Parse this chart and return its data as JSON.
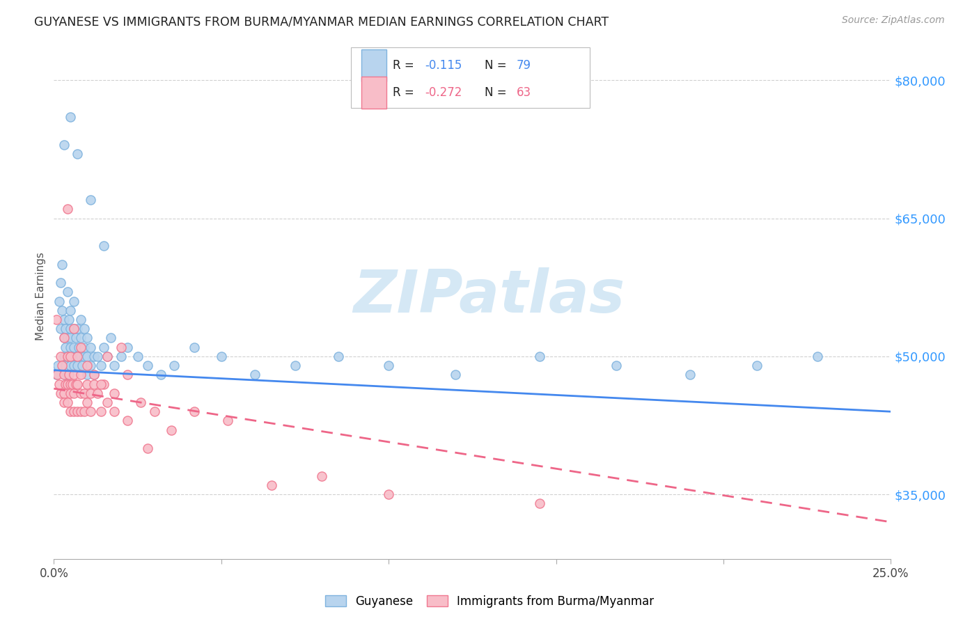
{
  "title": "GUYANESE VS IMMIGRANTS FROM BURMA/MYANMAR MEDIAN EARNINGS CORRELATION CHART",
  "source": "Source: ZipAtlas.com",
  "ylabel": "Median Earnings",
  "xlim": [
    0.0,
    0.25
  ],
  "ylim": [
    28000,
    85000
  ],
  "yticks": [
    35000,
    50000,
    65000,
    80000
  ],
  "ytick_labels": [
    "$35,000",
    "$50,000",
    "$65,000",
    "$80,000"
  ],
  "xticks": [
    0.0,
    0.05,
    0.1,
    0.15,
    0.2,
    0.25
  ],
  "xtick_labels": [
    "0.0%",
    "",
    "",
    "",
    "",
    "25.0%"
  ],
  "background_color": "#ffffff",
  "grid_color": "#d0d0d0",
  "blue_scatter_face": "#b8d4ee",
  "blue_scatter_edge": "#7fb3de",
  "pink_scatter_face": "#f8bdc8",
  "pink_scatter_edge": "#f07890",
  "blue_line_color": "#4488ee",
  "pink_line_color": "#ee6688",
  "title_color": "#222222",
  "ylabel_color": "#555555",
  "ytick_color": "#3399ff",
  "xtick_color": "#444444",
  "label1": "Guyanese",
  "label2": "Immigrants from Burma/Myanmar",
  "watermark_text": "ZIPatlas",
  "watermark_color": "#d5e8f5",
  "blue_x": [
    0.0008,
    0.0012,
    0.0015,
    0.002,
    0.002,
    0.0025,
    0.0025,
    0.003,
    0.003,
    0.003,
    0.003,
    0.0035,
    0.0035,
    0.0035,
    0.004,
    0.004,
    0.004,
    0.004,
    0.0045,
    0.0045,
    0.005,
    0.005,
    0.005,
    0.005,
    0.005,
    0.0055,
    0.006,
    0.006,
    0.006,
    0.006,
    0.0065,
    0.007,
    0.007,
    0.007,
    0.0075,
    0.008,
    0.008,
    0.008,
    0.0085,
    0.009,
    0.009,
    0.009,
    0.01,
    0.01,
    0.01,
    0.011,
    0.011,
    0.012,
    0.012,
    0.013,
    0.014,
    0.015,
    0.016,
    0.017,
    0.018,
    0.02,
    0.022,
    0.025,
    0.028,
    0.032,
    0.036,
    0.042,
    0.05,
    0.06,
    0.072,
    0.085,
    0.1,
    0.12,
    0.145,
    0.168,
    0.19,
    0.21,
    0.228,
    0.003,
    0.005,
    0.007,
    0.011,
    0.015
  ],
  "blue_y": [
    48000,
    49000,
    56000,
    58000,
    53000,
    60000,
    55000,
    52000,
    50000,
    54000,
    48000,
    51000,
    49000,
    53000,
    57000,
    52000,
    50000,
    48000,
    54000,
    50000,
    53000,
    51000,
    49000,
    55000,
    52000,
    50000,
    56000,
    53000,
    51000,
    49000,
    52000,
    50000,
    53000,
    49000,
    51000,
    54000,
    50000,
    52000,
    49000,
    51000,
    53000,
    50000,
    52000,
    50000,
    48000,
    51000,
    49000,
    50000,
    48000,
    50000,
    49000,
    51000,
    50000,
    52000,
    49000,
    50000,
    51000,
    50000,
    49000,
    48000,
    49000,
    51000,
    50000,
    48000,
    49000,
    50000,
    49000,
    48000,
    50000,
    49000,
    48000,
    49000,
    50000,
    73000,
    76000,
    72000,
    67000,
    62000
  ],
  "pink_x": [
    0.0008,
    0.001,
    0.0015,
    0.002,
    0.002,
    0.0025,
    0.003,
    0.003,
    0.003,
    0.003,
    0.0035,
    0.004,
    0.004,
    0.004,
    0.0045,
    0.005,
    0.005,
    0.005,
    0.005,
    0.0055,
    0.006,
    0.006,
    0.006,
    0.0065,
    0.007,
    0.007,
    0.007,
    0.008,
    0.008,
    0.008,
    0.009,
    0.009,
    0.01,
    0.01,
    0.011,
    0.011,
    0.012,
    0.013,
    0.014,
    0.015,
    0.016,
    0.018,
    0.02,
    0.022,
    0.026,
    0.03,
    0.035,
    0.042,
    0.052,
    0.065,
    0.08,
    0.1,
    0.145,
    0.004,
    0.006,
    0.008,
    0.01,
    0.012,
    0.014,
    0.016,
    0.018,
    0.022,
    0.028
  ],
  "pink_y": [
    54000,
    48000,
    47000,
    50000,
    46000,
    49000,
    52000,
    48000,
    46000,
    45000,
    47000,
    50000,
    47000,
    45000,
    48000,
    47000,
    46000,
    44000,
    50000,
    47000,
    48000,
    46000,
    44000,
    47000,
    50000,
    47000,
    44000,
    48000,
    46000,
    44000,
    46000,
    44000,
    47000,
    45000,
    46000,
    44000,
    47000,
    46000,
    44000,
    47000,
    45000,
    44000,
    51000,
    43000,
    45000,
    44000,
    42000,
    44000,
    43000,
    36000,
    37000,
    35000,
    34000,
    66000,
    53000,
    51000,
    49000,
    48000,
    47000,
    50000,
    46000,
    48000,
    40000
  ]
}
